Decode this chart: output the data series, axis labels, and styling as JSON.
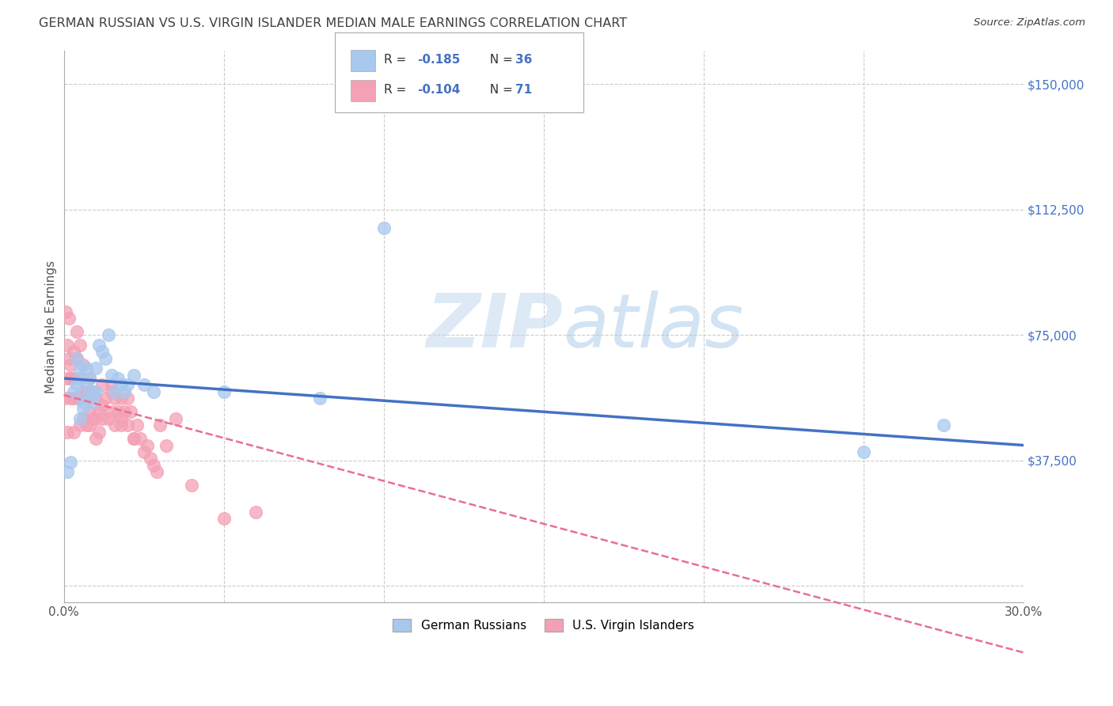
{
  "title": "GERMAN RUSSIAN VS U.S. VIRGIN ISLANDER MEDIAN MALE EARNINGS CORRELATION CHART",
  "source": "Source: ZipAtlas.com",
  "ylabel": "Median Male Earnings",
  "xlim": [
    0.0,
    0.3
  ],
  "ylim": [
    -5000,
    160000
  ],
  "xticks": [
    0.0,
    0.05,
    0.1,
    0.15,
    0.2,
    0.25,
    0.3
  ],
  "xticklabels": [
    "0.0%",
    "",
    "",
    "",
    "",
    "",
    "30.0%"
  ],
  "ytick_positions": [
    0,
    37500,
    75000,
    112500,
    150000
  ],
  "ytick_labels": [
    "",
    "$37,500",
    "$75,000",
    "$112,500",
    "$150,000"
  ],
  "blue_color": "#A8C8EE",
  "pink_color": "#F4A0B5",
  "blue_line_color": "#4472C4",
  "pink_line_color": "#E87090",
  "legend_label_blue": "German Russians",
  "legend_label_pink": "U.S. Virgin Islanders",
  "watermark_zip": "ZIP",
  "watermark_atlas": "atlas",
  "background_color": "#FFFFFF",
  "grid_color": "#CCCCCC",
  "title_color": "#404040",
  "source_color": "#404040",
  "axis_label_color": "#555555",
  "y_tick_color": "#4472C4",
  "blue_scatter_x": [
    0.001,
    0.002,
    0.003,
    0.004,
    0.004,
    0.005,
    0.005,
    0.006,
    0.007,
    0.007,
    0.008,
    0.009,
    0.01,
    0.01,
    0.011,
    0.012,
    0.013,
    0.014,
    0.015,
    0.016,
    0.017,
    0.018,
    0.019,
    0.02,
    0.022,
    0.025,
    0.028,
    0.05,
    0.08,
    0.1,
    0.25,
    0.275,
    0.005,
    0.006,
    0.007,
    0.009
  ],
  "blue_scatter_y": [
    34000,
    37000,
    58000,
    60000,
    68000,
    62000,
    65000,
    55000,
    60000,
    65000,
    62000,
    55000,
    58000,
    65000,
    72000,
    70000,
    68000,
    75000,
    63000,
    58000,
    62000,
    60000,
    58000,
    60000,
    63000,
    60000,
    58000,
    58000,
    56000,
    107000,
    40000,
    48000,
    50000,
    53000,
    56000,
    58000
  ],
  "pink_scatter_x": [
    0.0003,
    0.0005,
    0.001,
    0.001,
    0.001,
    0.0015,
    0.0015,
    0.002,
    0.002,
    0.002,
    0.003,
    0.003,
    0.003,
    0.003,
    0.004,
    0.004,
    0.004,
    0.005,
    0.005,
    0.005,
    0.005,
    0.006,
    0.006,
    0.006,
    0.007,
    0.007,
    0.008,
    0.008,
    0.008,
    0.009,
    0.009,
    0.01,
    0.01,
    0.01,
    0.011,
    0.011,
    0.012,
    0.012,
    0.013,
    0.014,
    0.015,
    0.015,
    0.016,
    0.016,
    0.017,
    0.018,
    0.018,
    0.019,
    0.02,
    0.02,
    0.021,
    0.022,
    0.023,
    0.024,
    0.025,
    0.026,
    0.027,
    0.028,
    0.029,
    0.03,
    0.032,
    0.035,
    0.04,
    0.05,
    0.06,
    0.007,
    0.008,
    0.012,
    0.015,
    0.018,
    0.022
  ],
  "pink_scatter_y": [
    56000,
    82000,
    72000,
    62000,
    46000,
    68000,
    80000,
    62000,
    66000,
    56000,
    70000,
    62000,
    56000,
    46000,
    76000,
    68000,
    56000,
    72000,
    62000,
    56000,
    48000,
    66000,
    58000,
    50000,
    56000,
    48000,
    62000,
    56000,
    48000,
    58000,
    50000,
    56000,
    50000,
    44000,
    52000,
    46000,
    60000,
    50000,
    56000,
    50000,
    60000,
    52000,
    56000,
    48000,
    52000,
    56000,
    48000,
    52000,
    56000,
    48000,
    52000,
    44000,
    48000,
    44000,
    40000,
    42000,
    38000,
    36000,
    34000,
    48000,
    42000,
    50000,
    30000,
    20000,
    22000,
    58000,
    52000,
    54000,
    58000,
    50000,
    44000
  ]
}
